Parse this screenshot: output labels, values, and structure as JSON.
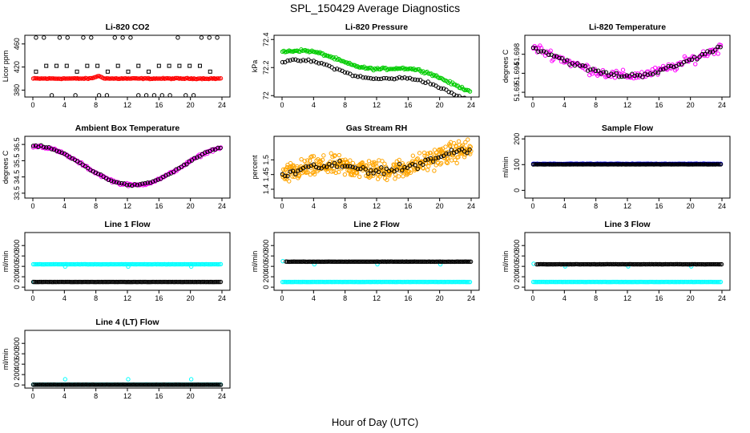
{
  "figure": {
    "title": "SPL_150429  Average Diagnostics",
    "xlabel": "Hour of Day (UTC)"
  },
  "colors": {
    "black": "#000000",
    "red": "#ff0000",
    "green": "#00cc00",
    "magenta": "#ff00ff",
    "orange": "#ffa500",
    "blue": "#0000ff",
    "cyan": "#00ffff"
  },
  "chart_data": [
    {
      "id": "co2",
      "type": "scatter",
      "title": "Li-820 CO2",
      "ylabel": "Licor ppm",
      "xlim": [
        0,
        24
      ],
      "xticks": [
        0,
        4,
        8,
        12,
        16,
        20,
        24
      ],
      "ylim": [
        368,
        475
      ],
      "yticks": [
        380,
        420,
        460
      ],
      "series": [
        {
          "color": "red",
          "marker": "o",
          "fn": "flat",
          "params": {
            "base": 400,
            "noise": 1.2,
            "bump_at": 8.3,
            "bump": 4
          }
        },
        {
          "color": "black",
          "marker": "o",
          "fn": "levels",
          "params": {
            "levels": [
              471,
              371
            ],
            "every": 1.0
          }
        },
        {
          "color": "black",
          "marker": "s",
          "fn": "levels",
          "params": {
            "levels": [
              422,
              412
            ],
            "every": 1.3
          }
        }
      ]
    },
    {
      "id": "pressure",
      "type": "scatter",
      "title": "Li-820 Pressure",
      "ylabel": "kPa",
      "xlim": [
        0,
        24
      ],
      "xticks": [
        0,
        4,
        8,
        12,
        16,
        20,
        24
      ],
      "ylim": [
        71.99,
        72.43
      ],
      "yticks": [
        72.0,
        72.2,
        72.4
      ],
      "series": [
        {
          "color": "green",
          "marker": "o",
          "fn": "pressure",
          "params": {
            "offset": 0.06
          }
        },
        {
          "color": "black",
          "marker": "o",
          "fn": "pressure",
          "params": {
            "offset": -0.01,
            "sparse": true
          }
        }
      ]
    },
    {
      "id": "li820temp",
      "type": "scatter",
      "title": "Li-820 Temperature",
      "ylabel": "degrees C",
      "xlim": [
        0,
        24
      ],
      "xticks": [
        0,
        4,
        8,
        12,
        16,
        20,
        24
      ],
      "ylim": [
        51.689,
        51.702
      ],
      "yticks": [
        51.69,
        51.694,
        51.698
      ],
      "series": [
        {
          "color": "magenta",
          "marker": "o",
          "fn": "li820temp",
          "params": {
            "noise": 0.0025
          }
        },
        {
          "color": "black",
          "marker": "o",
          "fn": "li820temp",
          "params": {
            "noise": 0.0012,
            "sparse": true
          }
        }
      ]
    },
    {
      "id": "boxtemp",
      "type": "scatter",
      "title": "Ambient Box Temperature",
      "ylabel": "degrees C",
      "xlim": [
        0,
        24
      ],
      "xticks": [
        0,
        4,
        8,
        12,
        16,
        20,
        24
      ],
      "ylim": [
        33.2,
        37.0
      ],
      "yticks": [
        33.5,
        34.5,
        35.5,
        36.5
      ],
      "series": [
        {
          "color": "magenta",
          "marker": "o",
          "fn": "boxtemp",
          "params": {
            "noise": 0.12
          }
        },
        {
          "color": "black",
          "marker": "o",
          "fn": "boxtemp",
          "params": {
            "noise": 0.08,
            "sparse": true
          }
        }
      ]
    },
    {
      "id": "rh",
      "type": "scatter",
      "title": "Gas Stream RH",
      "ylabel": "percent",
      "xlim": [
        0,
        24
      ],
      "xticks": [
        0,
        4,
        8,
        12,
        16,
        20,
        24
      ],
      "ylim": [
        1.37,
        1.58
      ],
      "yticks": [
        1.4,
        1.45,
        1.5
      ],
      "series": [
        {
          "color": "orange",
          "marker": "o",
          "fn": "rh",
          "params": {
            "noise": 0.05,
            "dense": true
          }
        },
        {
          "color": "black",
          "marker": "o",
          "fn": "rh",
          "params": {
            "noise": 0.02,
            "sparse": true
          }
        }
      ]
    },
    {
      "id": "sampleflow",
      "type": "scatter",
      "title": "Sample Flow",
      "ylabel": "ml/min",
      "xlim": [
        0,
        24
      ],
      "xticks": [
        0,
        4,
        8,
        12,
        16,
        20,
        24
      ],
      "ylim": [
        -30,
        210
      ],
      "yticks": [
        0,
        100,
        200
      ],
      "series": [
        {
          "color": "blue",
          "marker": "o",
          "fn": "flat",
          "params": {
            "base": 103,
            "noise": 1.0
          }
        },
        {
          "color": "black",
          "marker": "o",
          "fn": "flat",
          "params": {
            "base": 101,
            "noise": 0.6
          }
        }
      ]
    },
    {
      "id": "line1",
      "type": "scatter",
      "title": "Line 1 Flow",
      "ylabel": "ml/min",
      "xlim": [
        0,
        24
      ],
      "xticks": [
        0,
        4,
        8,
        12,
        16,
        20,
        24
      ],
      "ylim": [
        -60,
        1050
      ],
      "yticks": [
        0,
        200,
        400,
        600,
        800
      ],
      "series": [
        {
          "color": "cyan",
          "marker": "o",
          "fn": "flat",
          "params": {
            "base": 440,
            "noise": 3,
            "spikes": [
              [
                0.1,
                100
              ],
              [
                4.1,
                395
              ],
              [
                12.1,
                395
              ],
              [
                20.1,
                395
              ]
            ]
          }
        },
        {
          "color": "black",
          "marker": "o",
          "fn": "flat",
          "params": {
            "base": 100,
            "noise": 2
          }
        }
      ]
    },
    {
      "id": "line2",
      "type": "scatter",
      "title": "Line 2 Flow",
      "ylabel": "ml/min",
      "xlim": [
        0,
        24
      ],
      "xticks": [
        0,
        4,
        8,
        12,
        16,
        20,
        24
      ],
      "ylim": [
        -60,
        1050
      ],
      "yticks": [
        0,
        200,
        400,
        600,
        800
      ],
      "series": [
        {
          "color": "cyan",
          "marker": "o",
          "fn": "flat",
          "params": {
            "base": 100,
            "noise": 2,
            "spikes": [
              [
                0.1,
                500
              ],
              [
                4.1,
                440
              ],
              [
                12.1,
                440
              ],
              [
                20.1,
                440
              ]
            ]
          }
        },
        {
          "color": "black",
          "marker": "o",
          "fn": "flat",
          "params": {
            "base": 490,
            "noise": 3,
            "start": 0.5
          }
        }
      ]
    },
    {
      "id": "line3",
      "type": "scatter",
      "title": "Line 3 Flow",
      "ylabel": "ml/min",
      "xlim": [
        0,
        24
      ],
      "xticks": [
        0,
        4,
        8,
        12,
        16,
        20,
        24
      ],
      "ylim": [
        -60,
        1050
      ],
      "yticks": [
        0,
        200,
        400,
        600,
        800
      ],
      "series": [
        {
          "color": "cyan",
          "marker": "o",
          "fn": "flat",
          "params": {
            "base": 100,
            "noise": 2,
            "spikes": [
              [
                0.1,
                450
              ],
              [
                4.1,
                400
              ],
              [
                12.1,
                400
              ],
              [
                20.1,
                400
              ]
            ]
          }
        },
        {
          "color": "black",
          "marker": "o",
          "fn": "flat",
          "params": {
            "base": 440,
            "noise": 3,
            "start": 0.5
          }
        }
      ]
    },
    {
      "id": "line4",
      "type": "scatter",
      "title": "Line 4 (LT) Flow",
      "ylabel": "ml/min",
      "xlim": [
        0,
        24
      ],
      "xticks": [
        0,
        4,
        8,
        12,
        16,
        20,
        24
      ],
      "ylim": [
        -60,
        1050
      ],
      "yticks": [
        0,
        200,
        400,
        600,
        800
      ],
      "series": [
        {
          "color": "cyan",
          "marker": "o",
          "fn": "flat",
          "params": {
            "base": 8,
            "noise": 2,
            "spikes": [
              [
                4.1,
                110
              ],
              [
                12.1,
                110
              ],
              [
                20.1,
                110
              ]
            ]
          }
        },
        {
          "color": "black",
          "marker": "o",
          "fn": "flat",
          "params": {
            "base": 5,
            "noise": 1
          }
        }
      ]
    }
  ]
}
